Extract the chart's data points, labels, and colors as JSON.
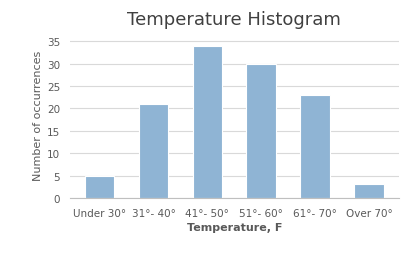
{
  "title": "Temperature Histogram",
  "xlabel": "Temperature, F",
  "ylabel": "Number of occurrences",
  "categories": [
    "Under 30°",
    "31°- 40°",
    "41°- 50°",
    "51°- 60°",
    "61°- 70°",
    "Over 70°"
  ],
  "values": [
    5,
    21,
    34,
    30,
    23,
    3
  ],
  "bar_color": "#8fb4d4",
  "bar_edgecolor": "#ffffff",
  "ylim": [
    0,
    37
  ],
  "yticks": [
    0,
    5,
    10,
    15,
    20,
    25,
    30,
    35
  ],
  "background_color": "#ffffff",
  "title_fontsize": 13,
  "label_fontsize": 8,
  "tick_fontsize": 7.5,
  "grid_color": "#d9d9d9",
  "spine_color": "#bfbfbf"
}
